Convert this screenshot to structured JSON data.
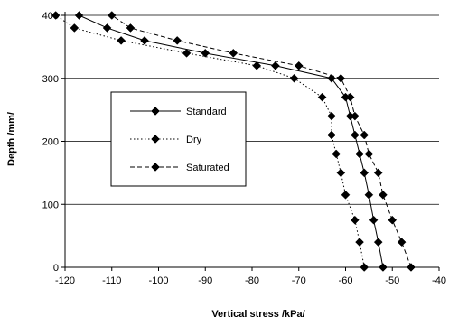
{
  "chart_data": {
    "type": "scatter",
    "title": "",
    "xlabel": "Vertical stress /kPa/",
    "ylabel": "Depth /mm/",
    "xlim": [
      -120,
      -40
    ],
    "ylim": [
      0,
      400
    ],
    "x_ticks": [
      -120,
      -110,
      -100,
      -90,
      -80,
      -70,
      -60,
      -50,
      -40
    ],
    "y_ticks": [
      0,
      100,
      200,
      300,
      400
    ],
    "x_tick_labels": [
      "-120",
      "-110",
      "-100",
      "-90",
      "-80",
      "-70",
      "-60",
      "-50",
      "-40"
    ],
    "y_tick_labels": [
      "0",
      "100",
      "200",
      "300",
      "400"
    ],
    "grid": "horizontal",
    "legend_position": "center-left",
    "series": [
      {
        "name": "Standard",
        "line_style": "solid",
        "marker": "diamond",
        "points": [
          [
            -52,
            0
          ],
          [
            -53,
            40
          ],
          [
            -54,
            75
          ],
          [
            -55,
            115
          ],
          [
            -56,
            150
          ],
          [
            -57,
            180
          ],
          [
            -58,
            210
          ],
          [
            -59,
            240
          ],
          [
            -60,
            270
          ],
          [
            -63,
            300
          ],
          [
            -75,
            320
          ],
          [
            -90,
            340
          ],
          [
            -103,
            360
          ],
          [
            -111,
            380
          ],
          [
            -117,
            400
          ]
        ]
      },
      {
        "name": "Dry",
        "line_style": "dotted",
        "marker": "diamond",
        "points": [
          [
            -56,
            0
          ],
          [
            -57,
            40
          ],
          [
            -58,
            75
          ],
          [
            -60,
            115
          ],
          [
            -61,
            150
          ],
          [
            -62,
            180
          ],
          [
            -63,
            210
          ],
          [
            -63,
            240
          ],
          [
            -65,
            270
          ],
          [
            -71,
            300
          ],
          [
            -79,
            320
          ],
          [
            -94,
            340
          ],
          [
            -108,
            360
          ],
          [
            -118,
            380
          ],
          [
            -122,
            400
          ]
        ]
      },
      {
        "name": "Saturated",
        "line_style": "dashed",
        "marker": "diamond",
        "points": [
          [
            -46,
            0
          ],
          [
            -48,
            40
          ],
          [
            -50,
            75
          ],
          [
            -52,
            115
          ],
          [
            -53,
            150
          ],
          [
            -55,
            180
          ],
          [
            -56,
            210
          ],
          [
            -58,
            240
          ],
          [
            -59,
            270
          ],
          [
            -61,
            300
          ],
          [
            -70,
            320
          ],
          [
            -84,
            340
          ],
          [
            -96,
            360
          ],
          [
            -106,
            380
          ],
          [
            -110,
            400
          ]
        ]
      }
    ]
  }
}
